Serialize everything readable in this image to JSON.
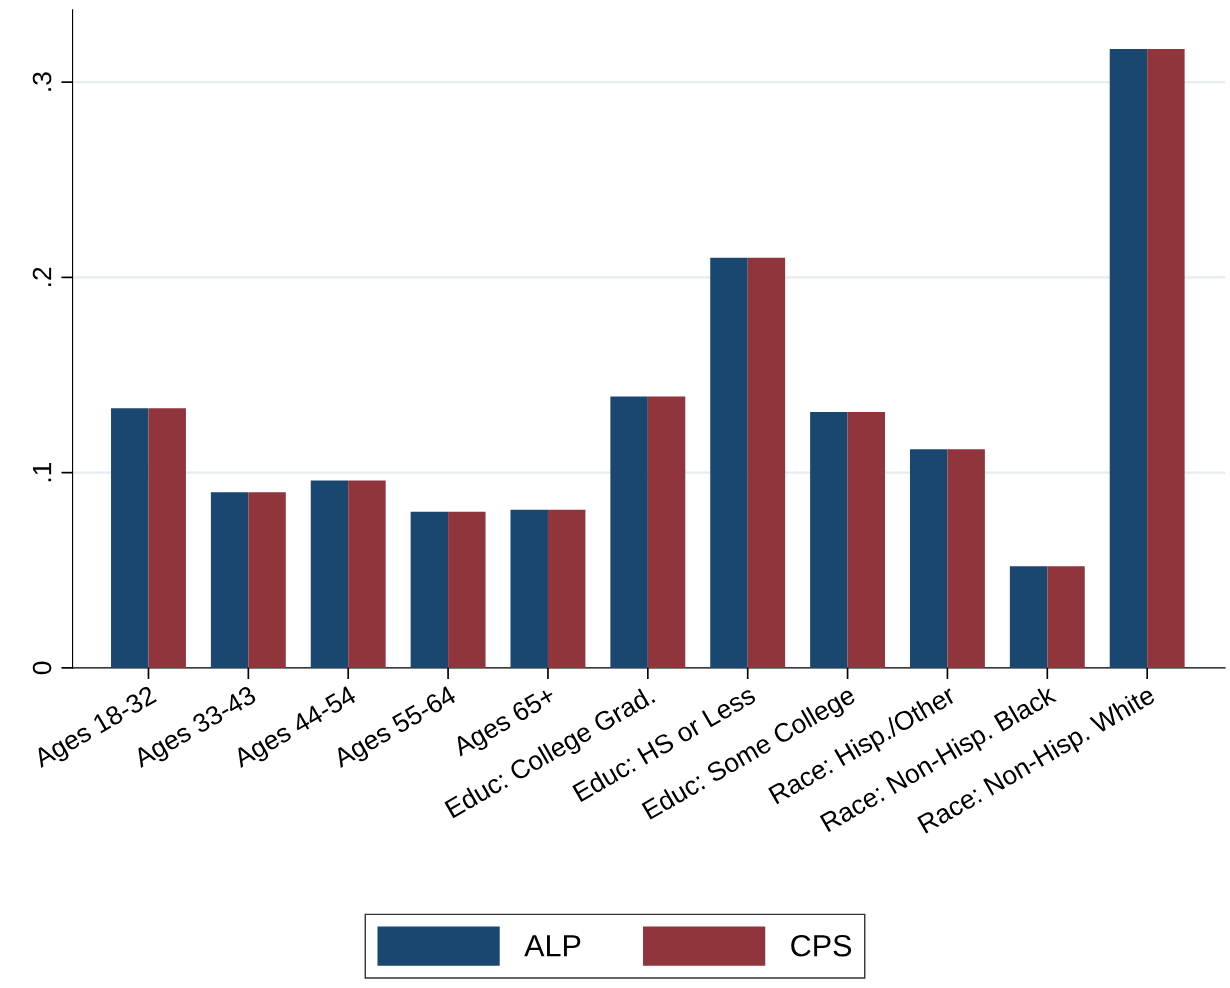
{
  "chart_data": {
    "type": "bar",
    "categories": [
      "Ages 18-32",
      "Ages 33-43",
      "Ages 44-54",
      "Ages 55-64",
      "Ages 65+",
      "Educ: College Grad.",
      "Educ: HS or Less",
      "Educ: Some College",
      "Race: Hisp./Other",
      "Race: Non-Hisp. Black",
      "Race: Non-Hisp. White"
    ],
    "series": [
      {
        "name": "ALP",
        "color": "#1a476f",
        "values": [
          0.133,
          0.09,
          0.096,
          0.08,
          0.081,
          0.139,
          0.21,
          0.131,
          0.112,
          0.052,
          0.317
        ]
      },
      {
        "name": "CPS",
        "color": "#90353b",
        "values": [
          0.133,
          0.09,
          0.096,
          0.08,
          0.081,
          0.139,
          0.21,
          0.131,
          0.112,
          0.052,
          0.317
        ]
      }
    ],
    "ylim": [
      0,
      0.337
    ],
    "yticks": [
      {
        "value": 0,
        "label": "0"
      },
      {
        "value": 0.1,
        "label": ".1"
      },
      {
        "value": 0.2,
        "label": ".2"
      },
      {
        "value": 0.3,
        "label": ".3"
      }
    ],
    "grid": "y",
    "legend": "bottom"
  }
}
